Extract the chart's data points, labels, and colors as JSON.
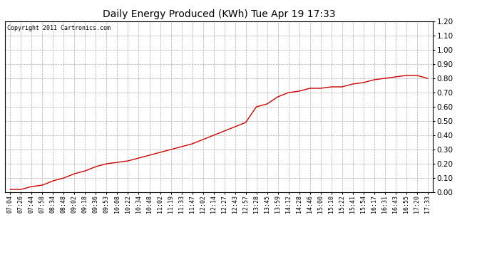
{
  "title": "Daily Energy Produced (KWh) Tue Apr 19 17:33",
  "copyright_text": "Copyright 2011 Cartronics.com",
  "line_color": "#cc0000",
  "background_color": "#ffffff",
  "grid_color": "#aaaaaa",
  "ylim": [
    0.0,
    1.2
  ],
  "yticks": [
    0.0,
    0.1,
    0.2,
    0.3,
    0.4,
    0.5,
    0.6,
    0.7,
    0.8,
    0.9,
    1.0,
    1.1,
    1.2
  ],
  "xtick_labels": [
    "07:04",
    "07:26",
    "07:44",
    "07:58",
    "08:34",
    "08:48",
    "09:02",
    "09:18",
    "09:36",
    "09:53",
    "10:08",
    "10:22",
    "10:34",
    "10:48",
    "11:02",
    "11:19",
    "11:33",
    "11:47",
    "12:02",
    "12:14",
    "12:27",
    "12:43",
    "12:57",
    "13:28",
    "13:45",
    "13:59",
    "14:12",
    "14:28",
    "14:46",
    "15:00",
    "15:10",
    "15:22",
    "15:41",
    "15:54",
    "16:17",
    "16:31",
    "16:43",
    "16:55",
    "17:20",
    "17:33"
  ],
  "y_values": [
    0.02,
    0.02,
    0.04,
    0.05,
    0.08,
    0.1,
    0.13,
    0.15,
    0.18,
    0.2,
    0.21,
    0.22,
    0.24,
    0.26,
    0.28,
    0.3,
    0.32,
    0.34,
    0.37,
    0.4,
    0.43,
    0.46,
    0.49,
    0.6,
    0.62,
    0.67,
    0.7,
    0.71,
    0.73,
    0.73,
    0.74,
    0.74,
    0.76,
    0.77,
    0.79,
    0.8,
    0.81,
    0.82,
    0.82,
    0.8
  ]
}
